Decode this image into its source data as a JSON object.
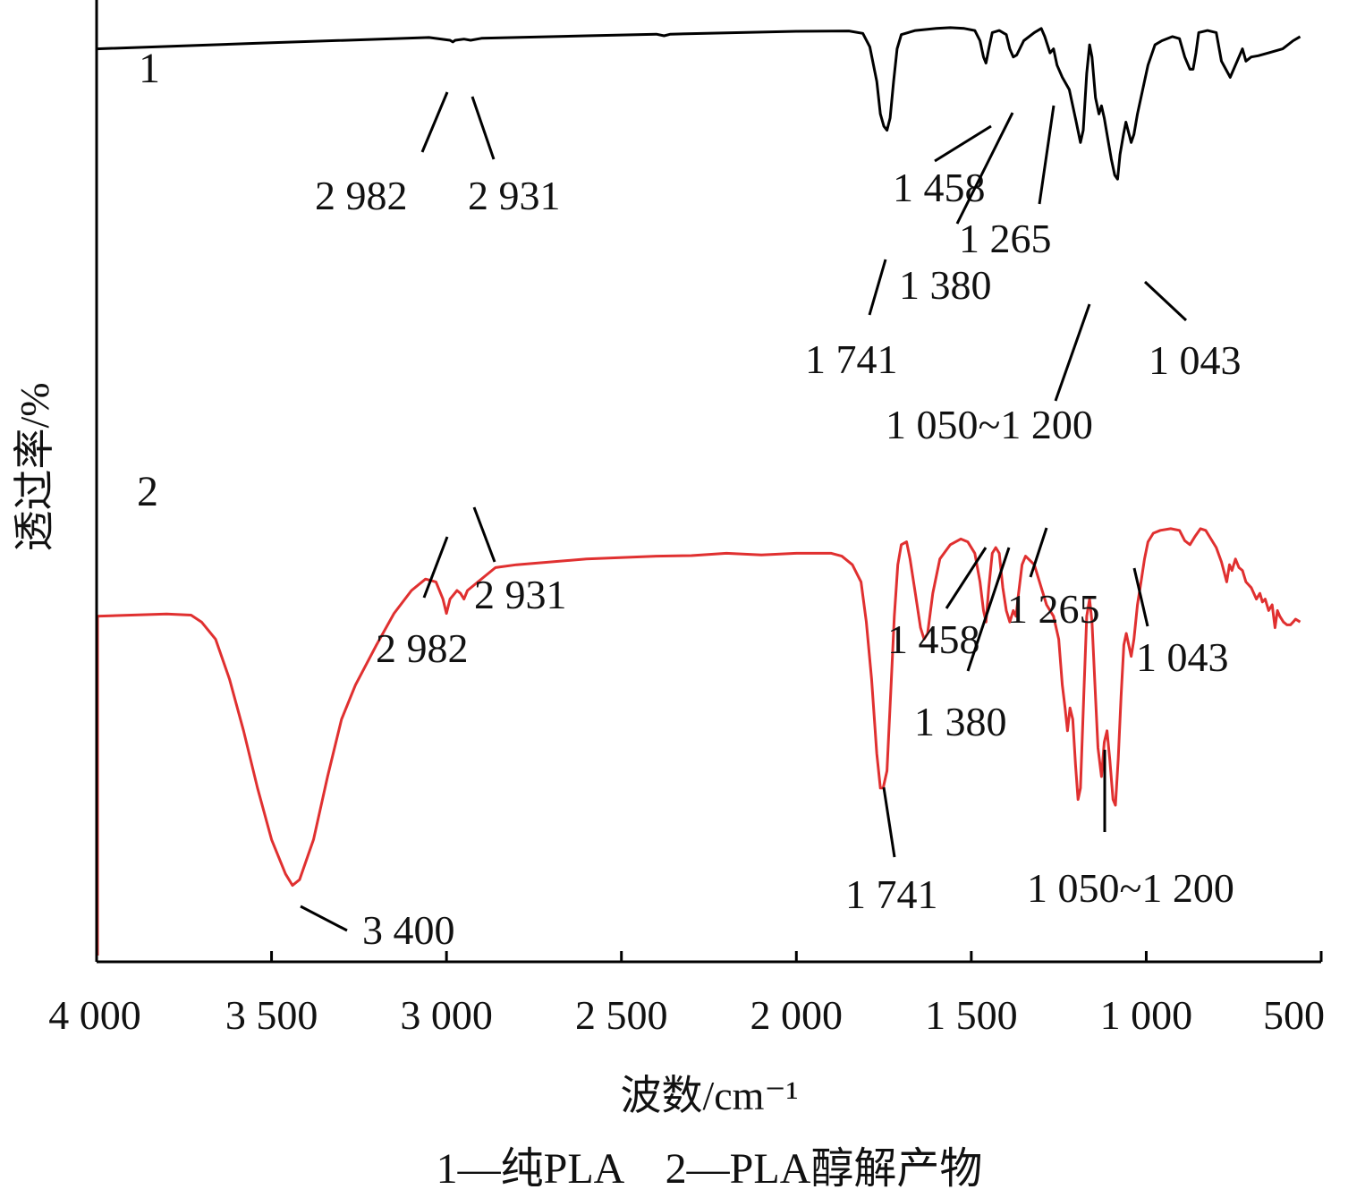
{
  "chart_data": {
    "type": "line",
    "title": "",
    "xlabel": "波数/cm⁻¹",
    "ylabel": "透过率/%",
    "xlim": [
      4000,
      500
    ],
    "x_reversed": true,
    "x_ticks": [
      4000,
      3500,
      3000,
      2500,
      2000,
      1500,
      1000,
      500
    ],
    "x_tick_labels": [
      "4 000",
      "3 500",
      "3 000",
      "2 500",
      "2 000",
      "1 500",
      "1 000",
      "500"
    ],
    "y_ticks_shown": false,
    "grid": false,
    "legend_caption": "1—纯PLA　2—PLA醇解产物",
    "series": [
      {
        "name": "1",
        "color": "#000000",
        "points": [
          [
            4000,
            88
          ],
          [
            3500,
            89.5
          ],
          [
            3050,
            90.8
          ],
          [
            2990,
            90.1
          ],
          [
            2982,
            89.7
          ],
          [
            2975,
            90.1
          ],
          [
            2950,
            90.4
          ],
          [
            2931,
            90.1
          ],
          [
            2900,
            90.6
          ],
          [
            2600,
            91.2
          ],
          [
            2400,
            91.6
          ],
          [
            2378,
            91.2
          ],
          [
            2360,
            91.6
          ],
          [
            2000,
            92.3
          ],
          [
            1850,
            92.4
          ],
          [
            1810,
            91.8
          ],
          [
            1790,
            88.5
          ],
          [
            1770,
            80
          ],
          [
            1760,
            72
          ],
          [
            1750,
            69
          ],
          [
            1741,
            68
          ],
          [
            1732,
            71
          ],
          [
            1722,
            80
          ],
          [
            1712,
            88
          ],
          [
            1700,
            91.5
          ],
          [
            1660,
            92.5
          ],
          [
            1600,
            93
          ],
          [
            1560,
            93.2
          ],
          [
            1520,
            93
          ],
          [
            1490,
            92.5
          ],
          [
            1475,
            90
          ],
          [
            1465,
            86
          ],
          [
            1458,
            84.5
          ],
          [
            1450,
            88
          ],
          [
            1440,
            92
          ],
          [
            1420,
            92.5
          ],
          [
            1400,
            91.5
          ],
          [
            1390,
            88
          ],
          [
            1380,
            86
          ],
          [
            1370,
            86.5
          ],
          [
            1350,
            90
          ],
          [
            1320,
            92
          ],
          [
            1300,
            93
          ],
          [
            1290,
            91
          ],
          [
            1275,
            87
          ],
          [
            1265,
            88
          ],
          [
            1255,
            84
          ],
          [
            1240,
            81
          ],
          [
            1220,
            78
          ],
          [
            1200,
            70
          ],
          [
            1188,
            65
          ],
          [
            1180,
            68
          ],
          [
            1170,
            82
          ],
          [
            1162,
            89
          ],
          [
            1155,
            86
          ],
          [
            1145,
            76
          ],
          [
            1135,
            72
          ],
          [
            1128,
            74
          ],
          [
            1120,
            71
          ],
          [
            1110,
            66
          ],
          [
            1100,
            61
          ],
          [
            1090,
            57
          ],
          [
            1082,
            56
          ],
          [
            1075,
            62
          ],
          [
            1065,
            67
          ],
          [
            1058,
            70
          ],
          [
            1043,
            65
          ],
          [
            1035,
            67
          ],
          [
            1025,
            72
          ],
          [
            1010,
            78
          ],
          [
            995,
            84
          ],
          [
            975,
            89
          ],
          [
            955,
            90
          ],
          [
            925,
            91
          ],
          [
            905,
            90.5
          ],
          [
            890,
            86
          ],
          [
            875,
            83
          ],
          [
            866,
            83
          ],
          [
            858,
            87
          ],
          [
            850,
            92
          ],
          [
            825,
            92.5
          ],
          [
            800,
            92
          ],
          [
            785,
            85
          ],
          [
            760,
            81
          ],
          [
            740,
            85
          ],
          [
            725,
            88
          ],
          [
            715,
            85
          ],
          [
            700,
            86
          ],
          [
            680,
            86.3
          ],
          [
            650,
            87
          ],
          [
            610,
            88
          ],
          [
            580,
            90
          ],
          [
            560,
            91
          ]
        ]
      },
      {
        "name": "2",
        "color": "#e03030",
        "points": [
          [
            4000,
            58
          ],
          [
            3800,
            58.4
          ],
          [
            3730,
            58.2
          ],
          [
            3700,
            57
          ],
          [
            3660,
            54
          ],
          [
            3620,
            47
          ],
          [
            3580,
            38
          ],
          [
            3540,
            28
          ],
          [
            3500,
            19
          ],
          [
            3460,
            13
          ],
          [
            3440,
            11
          ],
          [
            3420,
            12
          ],
          [
            3380,
            19
          ],
          [
            3340,
            30
          ],
          [
            3300,
            40
          ],
          [
            3260,
            46
          ],
          [
            3200,
            53
          ],
          [
            3150,
            58.5
          ],
          [
            3100,
            62.5
          ],
          [
            3060,
            64.5
          ],
          [
            3030,
            64
          ],
          [
            3010,
            61
          ],
          [
            3000,
            58.5
          ],
          [
            2990,
            61
          ],
          [
            2970,
            62.5
          ],
          [
            2960,
            62
          ],
          [
            2950,
            61
          ],
          [
            2940,
            62.5
          ],
          [
            2910,
            64
          ],
          [
            2860,
            66.5
          ],
          [
            2800,
            67
          ],
          [
            2600,
            68
          ],
          [
            2400,
            68.5
          ],
          [
            2300,
            68.6
          ],
          [
            2200,
            69
          ],
          [
            2100,
            68.7
          ],
          [
            2000,
            69
          ],
          [
            1900,
            69
          ],
          [
            1870,
            68.5
          ],
          [
            1840,
            67
          ],
          [
            1815,
            64
          ],
          [
            1800,
            57
          ],
          [
            1785,
            47
          ],
          [
            1770,
            34
          ],
          [
            1760,
            28
          ],
          [
            1752,
            28
          ],
          [
            1741,
            31
          ],
          [
            1730,
            45
          ],
          [
            1720,
            58
          ],
          [
            1710,
            67
          ],
          [
            1700,
            70.5
          ],
          [
            1685,
            71
          ],
          [
            1675,
            68
          ],
          [
            1660,
            62
          ],
          [
            1645,
            56
          ],
          [
            1635,
            54
          ],
          [
            1625,
            55
          ],
          [
            1610,
            62
          ],
          [
            1590,
            68
          ],
          [
            1560,
            70.5
          ],
          [
            1530,
            71.5
          ],
          [
            1510,
            71
          ],
          [
            1490,
            69
          ],
          [
            1475,
            64
          ],
          [
            1465,
            59
          ],
          [
            1458,
            57
          ],
          [
            1450,
            63
          ],
          [
            1440,
            69
          ],
          [
            1430,
            70
          ],
          [
            1420,
            69
          ],
          [
            1410,
            63
          ],
          [
            1400,
            59
          ],
          [
            1390,
            57
          ],
          [
            1380,
            59
          ],
          [
            1372,
            58
          ],
          [
            1365,
            62
          ],
          [
            1355,
            67
          ],
          [
            1345,
            68.5
          ],
          [
            1320,
            67
          ],
          [
            1300,
            63
          ],
          [
            1285,
            60
          ],
          [
            1265,
            58
          ],
          [
            1250,
            54
          ],
          [
            1240,
            46
          ],
          [
            1232,
            42
          ],
          [
            1225,
            38
          ],
          [
            1218,
            42
          ],
          [
            1210,
            40
          ],
          [
            1202,
            32
          ],
          [
            1195,
            26
          ],
          [
            1188,
            28
          ],
          [
            1178,
            45
          ],
          [
            1170,
            58
          ],
          [
            1162,
            61
          ],
          [
            1155,
            57
          ],
          [
            1145,
            44
          ],
          [
            1138,
            35
          ],
          [
            1128,
            30
          ],
          [
            1120,
            36
          ],
          [
            1112,
            38
          ],
          [
            1104,
            33
          ],
          [
            1095,
            26
          ],
          [
            1088,
            25
          ],
          [
            1080,
            33
          ],
          [
            1072,
            44
          ],
          [
            1064,
            53
          ],
          [
            1057,
            55
          ],
          [
            1043,
            51
          ],
          [
            1035,
            54
          ],
          [
            1025,
            60
          ],
          [
            1015,
            64
          ],
          [
            1005,
            68
          ],
          [
            995,
            71
          ],
          [
            980,
            72.5
          ],
          [
            960,
            73
          ],
          [
            930,
            73.3
          ],
          [
            905,
            73
          ],
          [
            890,
            71.2
          ],
          [
            875,
            70.5
          ],
          [
            860,
            72
          ],
          [
            845,
            73.3
          ],
          [
            830,
            73
          ],
          [
            815,
            71.5
          ],
          [
            800,
            70
          ],
          [
            785,
            67.5
          ],
          [
            770,
            64
          ],
          [
            762,
            67
          ],
          [
            755,
            66
          ],
          [
            745,
            68
          ],
          [
            735,
            66.5
          ],
          [
            725,
            66
          ],
          [
            715,
            64
          ],
          [
            700,
            63
          ],
          [
            685,
            61
          ],
          [
            675,
            62
          ],
          [
            668,
            60.5
          ],
          [
            660,
            61
          ],
          [
            650,
            59
          ],
          [
            640,
            60
          ],
          [
            632,
            56
          ],
          [
            625,
            59
          ],
          [
            618,
            58
          ],
          [
            608,
            57
          ],
          [
            598,
            56.5
          ],
          [
            588,
            56.5
          ],
          [
            580,
            57
          ],
          [
            573,
            57.5
          ],
          [
            560,
            57
          ]
        ]
      }
    ],
    "annotations": [
      {
        "series": "1",
        "text": "2 982"
      },
      {
        "series": "1",
        "text": "2 931"
      },
      {
        "series": "1",
        "text": "1 741"
      },
      {
        "series": "1",
        "text": "1 458"
      },
      {
        "series": "1",
        "text": "1 380"
      },
      {
        "series": "1",
        "text": "1 265"
      },
      {
        "series": "1",
        "text": "1 050~1 200"
      },
      {
        "series": "1",
        "text": "1 043"
      },
      {
        "series": "2",
        "text": "3 400"
      },
      {
        "series": "2",
        "text": "2 982"
      },
      {
        "series": "2",
        "text": "2 931"
      },
      {
        "series": "2",
        "text": "1 741"
      },
      {
        "series": "2",
        "text": "1 458"
      },
      {
        "series": "2",
        "text": "1 380"
      },
      {
        "series": "2",
        "text": "1 265"
      },
      {
        "series": "2",
        "text": "1 050~1 200"
      },
      {
        "series": "2",
        "text": "1 043"
      }
    ]
  }
}
